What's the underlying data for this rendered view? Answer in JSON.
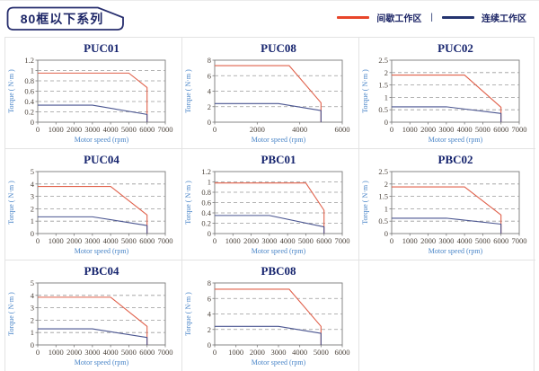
{
  "header": {
    "title": "80框以下系列"
  },
  "legend": {
    "items": [
      {
        "label": "间歇工作区",
        "color": "#e8452a"
      },
      {
        "label": "连续工作区",
        "color": "#24346f"
      }
    ],
    "separator": "|"
  },
  "colors": {
    "chart_title": "#16246e",
    "axis_label": "#4b86c8",
    "tick_label": "#4d443c",
    "gridline": "#9a9a9a",
    "plot_border": "#7a7a7a",
    "intermittent_line": "#e0604a",
    "continuous_line": "#4a5590"
  },
  "chart_data": [
    {
      "type": "line",
      "title": "PUC01",
      "xlabel": "Motor speed (rpm)",
      "ylabel": "Torque ( N·m )",
      "xlim": [
        0,
        7000
      ],
      "xticks": [
        0,
        1000,
        2000,
        3000,
        4000,
        5000,
        6000,
        7000
      ],
      "ylim": [
        0,
        1.2
      ],
      "yticks": [
        0,
        0.2,
        0.4,
        0.6,
        0.8,
        1,
        1.2
      ],
      "grid": "dashed-horizontal",
      "series": [
        {
          "name": "间歇工作区",
          "color": "#e0604a",
          "points": [
            [
              0,
              0.95
            ],
            [
              5000,
              0.95
            ],
            [
              6000,
              0.67
            ],
            [
              6000,
              0
            ]
          ]
        },
        {
          "name": "连续工作区",
          "color": "#4a5590",
          "points": [
            [
              0,
              0.33
            ],
            [
              3000,
              0.33
            ],
            [
              6000,
              0.15
            ],
            [
              6000,
              0
            ]
          ]
        }
      ]
    },
    {
      "type": "line",
      "title": "PUC08",
      "xlabel": "Motor speed (rpm)",
      "ylabel": "Torque ( N·m )",
      "xlim": [
        0,
        6000
      ],
      "xticks": [
        0,
        2000,
        4000,
        6000
      ],
      "ylim": [
        0,
        8
      ],
      "yticks": [
        0,
        2,
        4,
        6,
        8
      ],
      "grid": "dashed-horizontal",
      "series": [
        {
          "name": "间歇工作区",
          "color": "#e0604a",
          "points": [
            [
              0,
              7.3
            ],
            [
              3500,
              7.3
            ],
            [
              5000,
              2.5
            ],
            [
              5000,
              0
            ]
          ]
        },
        {
          "name": "连续工作区",
          "color": "#4a5590",
          "points": [
            [
              0,
              2.4
            ],
            [
              3000,
              2.4
            ],
            [
              5000,
              1.5
            ],
            [
              5000,
              0
            ]
          ]
        }
      ]
    },
    {
      "type": "line",
      "title": "PUC02",
      "xlabel": "Motor speed (rpm)",
      "ylabel": "Torque ( N·m )",
      "xlim": [
        0,
        7000
      ],
      "xticks": [
        0,
        1000,
        2000,
        3000,
        4000,
        5000,
        6000,
        7000
      ],
      "ylim": [
        0,
        2.5
      ],
      "yticks": [
        0,
        0.5,
        1,
        1.5,
        2,
        2.5
      ],
      "grid": "dashed-horizontal",
      "series": [
        {
          "name": "间歇工作区",
          "color": "#e0604a",
          "points": [
            [
              0,
              1.9
            ],
            [
              4000,
              1.9
            ],
            [
              6000,
              0.6
            ],
            [
              6000,
              0
            ]
          ]
        },
        {
          "name": "连续工作区",
          "color": "#4a5590",
          "points": [
            [
              0,
              0.62
            ],
            [
              3000,
              0.62
            ],
            [
              6000,
              0.35
            ],
            [
              6000,
              0
            ]
          ]
        }
      ]
    },
    {
      "type": "line",
      "title": "PUC04",
      "xlabel": "Motor speed (rpm)",
      "ylabel": "Torque ( N·m )",
      "xlim": [
        0,
        7000
      ],
      "xticks": [
        0,
        1000,
        2000,
        3000,
        4000,
        5000,
        6000,
        7000
      ],
      "ylim": [
        0,
        5
      ],
      "yticks": [
        0,
        1,
        2,
        3,
        4,
        5
      ],
      "grid": "dashed-horizontal",
      "series": [
        {
          "name": "间歇工作区",
          "color": "#e0604a",
          "points": [
            [
              0,
              3.8
            ],
            [
              4000,
              3.8
            ],
            [
              6000,
              1.5
            ],
            [
              6000,
              0
            ]
          ]
        },
        {
          "name": "连续工作区",
          "color": "#4a5590",
          "points": [
            [
              0,
              1.35
            ],
            [
              3000,
              1.35
            ],
            [
              6000,
              0.65
            ],
            [
              6000,
              0
            ]
          ]
        }
      ]
    },
    {
      "type": "line",
      "title": "PBC01",
      "xlabel": "Motor speed (rpm)",
      "ylabel": "Torque ( N·m )",
      "xlim": [
        0,
        7000
      ],
      "xticks": [
        0,
        1000,
        2000,
        3000,
        4000,
        5000,
        6000,
        7000
      ],
      "ylim": [
        0,
        1.2
      ],
      "yticks": [
        0,
        0.2,
        0.4,
        0.6,
        0.8,
        1,
        1.2
      ],
      "grid": "dashed-horizontal",
      "series": [
        {
          "name": "间歇工作区",
          "color": "#e0604a",
          "points": [
            [
              0,
              0.98
            ],
            [
              5000,
              0.98
            ],
            [
              6000,
              0.45
            ],
            [
              6000,
              0
            ]
          ]
        },
        {
          "name": "连续工作区",
          "color": "#4a5590",
          "points": [
            [
              0,
              0.35
            ],
            [
              3000,
              0.35
            ],
            [
              6000,
              0.13
            ],
            [
              6000,
              0
            ]
          ]
        }
      ]
    },
    {
      "type": "line",
      "title": "PBC02",
      "xlabel": "Motor speed (rpm)",
      "ylabel": "Torque ( N·m )",
      "xlim": [
        0,
        7000
      ],
      "xticks": [
        0,
        1000,
        2000,
        3000,
        4000,
        5000,
        6000,
        7000
      ],
      "ylim": [
        0,
        2.5
      ],
      "yticks": [
        0,
        0.5,
        1,
        1.5,
        2,
        2.5
      ],
      "grid": "dashed-horizontal",
      "series": [
        {
          "name": "间歇工作区",
          "color": "#e0604a",
          "points": [
            [
              0,
              1.88
            ],
            [
              4000,
              1.88
            ],
            [
              6000,
              0.75
            ],
            [
              6000,
              0
            ]
          ]
        },
        {
          "name": "连续工作区",
          "color": "#4a5590",
          "points": [
            [
              0,
              0.62
            ],
            [
              3000,
              0.62
            ],
            [
              6000,
              0.38
            ],
            [
              6000,
              0
            ]
          ]
        }
      ]
    },
    {
      "type": "line",
      "title": "PBC04",
      "xlabel": "Motor speed (rpm)",
      "ylabel": "Torque ( N·m )",
      "xlim": [
        0,
        7000
      ],
      "xticks": [
        0,
        1000,
        2000,
        3000,
        4000,
        5000,
        6000,
        7000
      ],
      "ylim": [
        0,
        5
      ],
      "yticks": [
        0,
        1,
        2,
        3,
        4,
        5
      ],
      "grid": "dashed-horizontal",
      "series": [
        {
          "name": "间歇工作区",
          "color": "#e0604a",
          "points": [
            [
              0,
              3.85
            ],
            [
              4000,
              3.85
            ],
            [
              6000,
              1.5
            ],
            [
              6000,
              0
            ]
          ]
        },
        {
          "name": "连续工作区",
          "color": "#4a5590",
          "points": [
            [
              0,
              1.3
            ],
            [
              3000,
              1.3
            ],
            [
              6000,
              0.6
            ],
            [
              6000,
              0
            ]
          ]
        }
      ]
    },
    {
      "type": "line",
      "title": "PBC08",
      "xlabel": "Motor speed (rpm)",
      "ylabel": "Torque ( N·m )",
      "xlim": [
        0,
        6000
      ],
      "xticks": [
        0,
        1000,
        2000,
        3000,
        4000,
        5000,
        6000
      ],
      "ylim": [
        0,
        8
      ],
      "yticks": [
        0,
        2,
        4,
        6,
        8
      ],
      "grid": "dashed-horizontal",
      "series": [
        {
          "name": "间歇工作区",
          "color": "#e0604a",
          "points": [
            [
              0,
              7.2
            ],
            [
              3500,
              7.2
            ],
            [
              5000,
              2.4
            ],
            [
              5000,
              0
            ]
          ]
        },
        {
          "name": "连续工作区",
          "color": "#4a5590",
          "points": [
            [
              0,
              2.4
            ],
            [
              3000,
              2.4
            ],
            [
              5000,
              1.5
            ],
            [
              5000,
              0
            ]
          ]
        }
      ]
    }
  ]
}
